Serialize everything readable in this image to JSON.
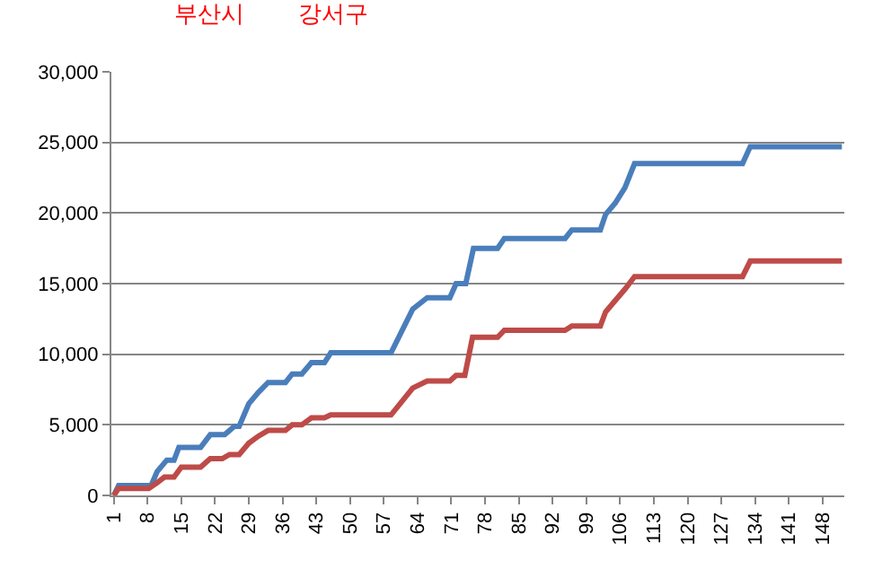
{
  "chart_data": {
    "type": "line",
    "annotations": [
      "부산시",
      "강서구"
    ],
    "series": [
      {
        "color": "#4a7ebb",
        "x": [
          1,
          2,
          8.75,
          10,
          12,
          13.5,
          14.5,
          19,
          21,
          24,
          26,
          27,
          29,
          31,
          33,
          36.6,
          38,
          40,
          42,
          44.7,
          46,
          58.5,
          63,
          66,
          70.7,
          72,
          74,
          75.6,
          80.6,
          82,
          94.6,
          96,
          101.9,
          103,
          105,
          107,
          109,
          131.4,
          133,
          152
        ],
        "values": [
          0,
          700,
          700,
          1700,
          2500,
          2500,
          3400,
          3400,
          4300,
          4300,
          4900,
          4900,
          6500,
          7300,
          8000,
          8000,
          8600,
          8600,
          9400,
          9400,
          10100,
          10100,
          13200,
          14000,
          14000,
          15000,
          15000,
          17500,
          17500,
          18200,
          18200,
          18800,
          18800,
          19900,
          20700,
          21800,
          23500,
          23500,
          24700,
          24700
        ]
      },
      {
        "color": "#be4b48",
        "x": [
          1,
          2,
          8.25,
          10,
          11.5,
          13.5,
          15,
          19,
          21,
          23.5,
          25,
          27,
          29,
          31,
          33,
          36.6,
          38,
          40,
          42,
          44.7,
          46,
          58.5,
          63,
          66,
          70.7,
          72,
          73.8,
          75.4,
          80.6,
          82,
          94.6,
          96,
          101.9,
          103,
          104.5,
          107,
          109,
          131.4,
          133,
          152
        ],
        "values": [
          0,
          500,
          500,
          900,
          1300,
          1300,
          2000,
          2000,
          2600,
          2600,
          2900,
          2900,
          3700,
          4200,
          4600,
          4600,
          5000,
          5000,
          5500,
          5500,
          5700,
          5700,
          7600,
          8100,
          8100,
          8500,
          8500,
          11200,
          11200,
          11700,
          11700,
          12000,
          12000,
          13000,
          13600,
          14600,
          15500,
          15500,
          16600,
          16600
        ]
      }
    ],
    "xlim": [
      0.5,
      152.5
    ],
    "xticks": [
      1,
      8,
      15,
      22,
      29,
      36,
      43,
      50,
      57,
      64,
      71,
      78,
      85,
      92,
      99,
      106,
      113,
      120,
      127,
      134,
      141,
      148
    ],
    "ylim": [
      0,
      30000
    ],
    "yticks": [
      0,
      {
        "value": 5000,
        "label": "5,000"
      },
      {
        "value": 10000,
        "label": "10,000"
      },
      {
        "value": 15000,
        "label": "15,000"
      },
      {
        "value": 20000,
        "label": "20,000"
      },
      {
        "value": 25000,
        "label": "25,000"
      },
      {
        "value": 30000,
        "label": "30,000"
      }
    ],
    "grid": "y",
    "marker": "none",
    "line_style": "solid"
  }
}
